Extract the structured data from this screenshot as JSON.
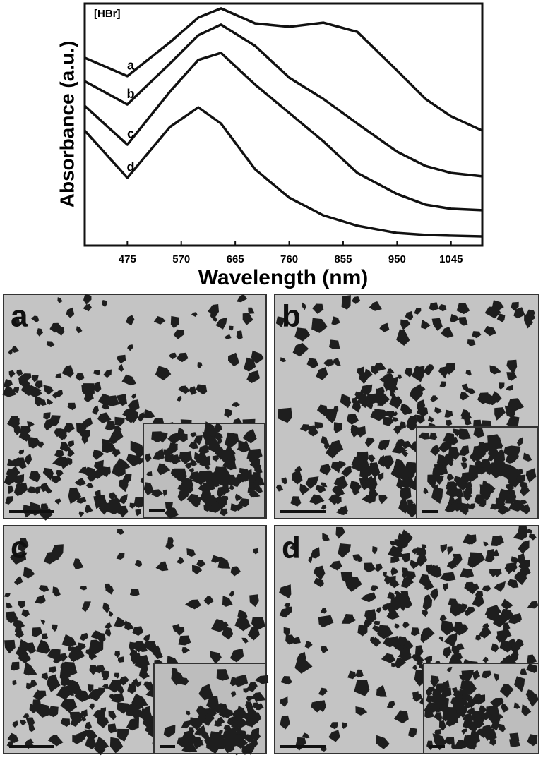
{
  "chart_data": {
    "type": "line",
    "x_label": "Wavelength (nm)",
    "y_label": "Absorbance (a.u.)",
    "annotations": [
      "[HBr]"
    ],
    "x": [
      400,
      475,
      550,
      600,
      640,
      700,
      760,
      820,
      880,
      950,
      1000,
      1045,
      1100
    ],
    "xlim": [
      400,
      1100
    ],
    "xticks": [
      475,
      570,
      665,
      760,
      855,
      950,
      1045
    ],
    "ylim": [
      0,
      1
    ],
    "series": [
      {
        "name": "a",
        "color": "#111111",
        "values": [
          0.776,
          0.7,
          0.84,
          0.942,
          0.98,
          0.918,
          0.904,
          0.921,
          0.883,
          0.723,
          0.606,
          0.534,
          0.475
        ]
      },
      {
        "name": "b",
        "color": "#111111",
        "values": [
          0.679,
          0.583,
          0.752,
          0.869,
          0.913,
          0.825,
          0.694,
          0.606,
          0.504,
          0.388,
          0.329,
          0.3,
          0.286
        ]
      },
      {
        "name": "c",
        "color": "#111111",
        "values": [
          0.577,
          0.417,
          0.636,
          0.767,
          0.796,
          0.665,
          0.548,
          0.431,
          0.3,
          0.213,
          0.169,
          0.152,
          0.146
        ]
      },
      {
        "name": "d",
        "color": "#111111",
        "values": [
          0.475,
          0.28,
          0.49,
          0.571,
          0.504,
          0.315,
          0.198,
          0.125,
          0.082,
          0.052,
          0.044,
          0.041,
          0.038
        ]
      }
    ]
  },
  "panels": [
    {
      "label": "a"
    },
    {
      "label": "b"
    },
    {
      "label": "c"
    },
    {
      "label": "d"
    }
  ]
}
